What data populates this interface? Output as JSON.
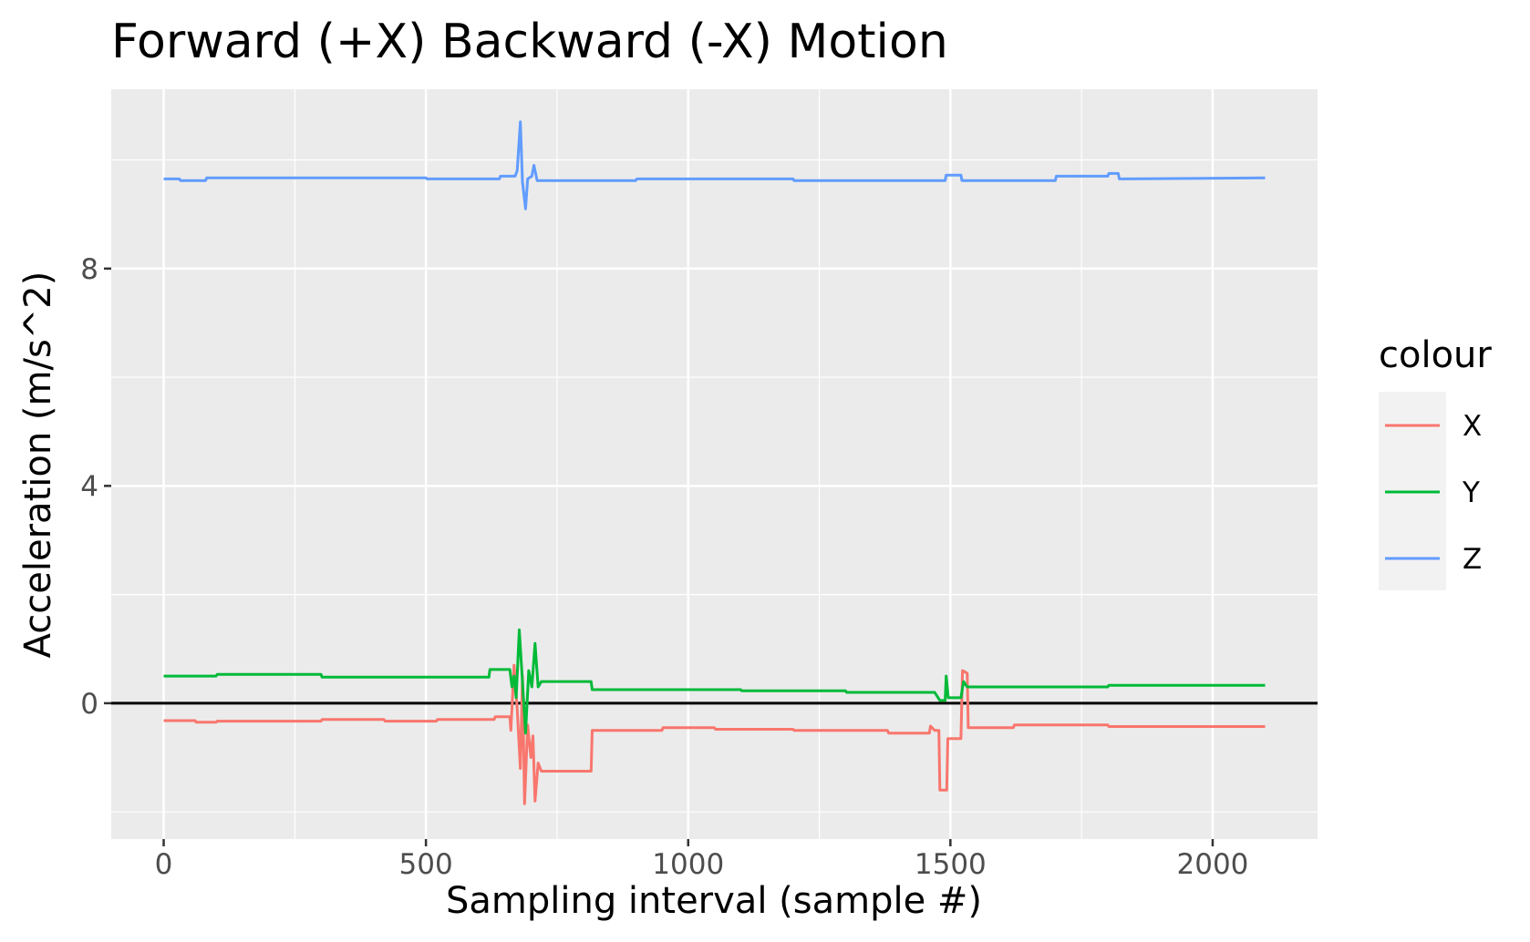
{
  "chart_data": {
    "type": "line",
    "title": "Forward (+X) Backward (-X) Motion",
    "xlabel": "Sampling interval (sample #)",
    "ylabel": "Acceleration (m/s^2)",
    "xlim": [
      -100,
      2200
    ],
    "ylim": [
      -2.5,
      11.3
    ],
    "x_ticks": [
      0,
      500,
      1000,
      1500,
      2000
    ],
    "x_tick_labels": [
      "0",
      "500",
      "1000",
      "1500",
      "2000"
    ],
    "y_ticks": [
      0,
      4,
      8
    ],
    "y_tick_labels": [
      "0",
      "4",
      "8"
    ],
    "reference_line_y": 0,
    "grid": true,
    "legend": {
      "title": "colour",
      "position": "right"
    },
    "series": [
      {
        "name": "X",
        "color": "#F8766D",
        "points": [
          [
            0,
            -0.32
          ],
          [
            60,
            -0.32
          ],
          [
            62,
            -0.35
          ],
          [
            100,
            -0.35
          ],
          [
            102,
            -0.33
          ],
          [
            300,
            -0.33
          ],
          [
            302,
            -0.3
          ],
          [
            420,
            -0.3
          ],
          [
            422,
            -0.33
          ],
          [
            520,
            -0.33
          ],
          [
            522,
            -0.3
          ],
          [
            630,
            -0.3
          ],
          [
            632,
            -0.25
          ],
          [
            660,
            -0.25
          ],
          [
            662,
            -0.5
          ],
          [
            668,
            0.7
          ],
          [
            674,
            -0.1
          ],
          [
            680,
            -1.2
          ],
          [
            684,
            0.5
          ],
          [
            688,
            -1.85
          ],
          [
            694,
            -0.4
          ],
          [
            700,
            -1.0
          ],
          [
            704,
            -0.6
          ],
          [
            708,
            -1.8
          ],
          [
            714,
            -1.1
          ],
          [
            720,
            -1.25
          ],
          [
            815,
            -1.25
          ],
          [
            817,
            -0.5
          ],
          [
            950,
            -0.5
          ],
          [
            952,
            -0.45
          ],
          [
            1050,
            -0.45
          ],
          [
            1052,
            -0.48
          ],
          [
            1200,
            -0.48
          ],
          [
            1202,
            -0.5
          ],
          [
            1380,
            -0.5
          ],
          [
            1382,
            -0.55
          ],
          [
            1460,
            -0.55
          ],
          [
            1462,
            -0.42
          ],
          [
            1470,
            -0.5
          ],
          [
            1478,
            -0.5
          ],
          [
            1480,
            -1.6
          ],
          [
            1493,
            -1.6
          ],
          [
            1495,
            -0.65
          ],
          [
            1520,
            -0.65
          ],
          [
            1523,
            0.6
          ],
          [
            1532,
            0.55
          ],
          [
            1534,
            -0.45
          ],
          [
            1620,
            -0.45
          ],
          [
            1622,
            -0.4
          ],
          [
            1800,
            -0.4
          ],
          [
            1802,
            -0.43
          ],
          [
            2100,
            -0.43
          ]
        ]
      },
      {
        "name": "Y",
        "color": "#00BA38",
        "points": [
          [
            0,
            0.5
          ],
          [
            100,
            0.5
          ],
          [
            102,
            0.53
          ],
          [
            300,
            0.53
          ],
          [
            302,
            0.48
          ],
          [
            620,
            0.48
          ],
          [
            622,
            0.62
          ],
          [
            660,
            0.62
          ],
          [
            664,
            0.3
          ],
          [
            668,
            0.5
          ],
          [
            672,
            0.1
          ],
          [
            678,
            1.35
          ],
          [
            684,
            0.4
          ],
          [
            690,
            -0.55
          ],
          [
            696,
            0.6
          ],
          [
            702,
            0.3
          ],
          [
            708,
            1.1
          ],
          [
            714,
            0.3
          ],
          [
            720,
            0.4
          ],
          [
            815,
            0.4
          ],
          [
            817,
            0.25
          ],
          [
            1100,
            0.25
          ],
          [
            1102,
            0.23
          ],
          [
            1300,
            0.23
          ],
          [
            1302,
            0.2
          ],
          [
            1470,
            0.2
          ],
          [
            1480,
            0.05
          ],
          [
            1490,
            0.05
          ],
          [
            1492,
            0.5
          ],
          [
            1496,
            0.1
          ],
          [
            1520,
            0.1
          ],
          [
            1525,
            0.4
          ],
          [
            1532,
            0.3
          ],
          [
            1560,
            0.3
          ],
          [
            1562,
            0.3
          ],
          [
            1800,
            0.3
          ],
          [
            1802,
            0.33
          ],
          [
            2100,
            0.33
          ]
        ]
      },
      {
        "name": "Z",
        "color": "#619CFF",
        "points": [
          [
            0,
            9.65
          ],
          [
            30,
            9.65
          ],
          [
            32,
            9.62
          ],
          [
            80,
            9.62
          ],
          [
            82,
            9.67
          ],
          [
            500,
            9.67
          ],
          [
            502,
            9.65
          ],
          [
            640,
            9.65
          ],
          [
            642,
            9.7
          ],
          [
            670,
            9.7
          ],
          [
            674,
            9.8
          ],
          [
            680,
            10.7
          ],
          [
            684,
            9.6
          ],
          [
            690,
            9.1
          ],
          [
            694,
            9.65
          ],
          [
            702,
            9.7
          ],
          [
            706,
            9.9
          ],
          [
            712,
            9.62
          ],
          [
            900,
            9.62
          ],
          [
            902,
            9.65
          ],
          [
            1200,
            9.65
          ],
          [
            1202,
            9.62
          ],
          [
            1490,
            9.62
          ],
          [
            1492,
            9.72
          ],
          [
            1520,
            9.72
          ],
          [
            1522,
            9.62
          ],
          [
            1700,
            9.62
          ],
          [
            1702,
            9.7
          ],
          [
            1800,
            9.7
          ],
          [
            1802,
            9.75
          ],
          [
            1820,
            9.75
          ],
          [
            1822,
            9.65
          ],
          [
            2100,
            9.67
          ]
        ]
      }
    ]
  }
}
